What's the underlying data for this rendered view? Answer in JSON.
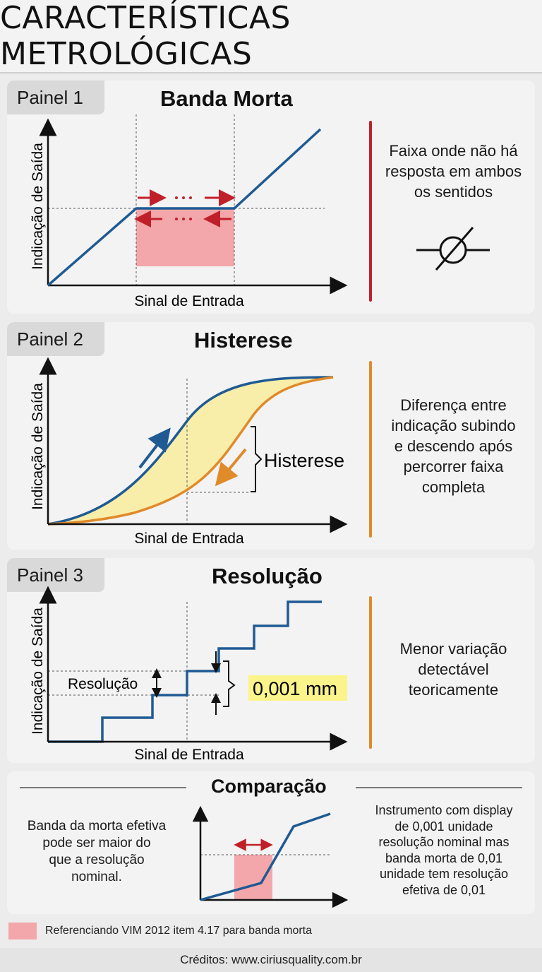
{
  "title": "CARACTERÍSTICAS METROLÓGICAS",
  "axis": {
    "ylabel": "Indicação de Saída",
    "xlabel": "Sinal de Entrada"
  },
  "panels": [
    {
      "tag": "Painel 1",
      "title": "Banda Morta",
      "description": [
        "Faixa onde não há",
        "resposta em ambos",
        "os sentidos"
      ],
      "accent": "#c0202a",
      "icon": "null-symbol-icon"
    },
    {
      "tag": "Painel 2",
      "title": "Histerese",
      "description": [
        "Diferença entre",
        "indicação subindo",
        "e descendo após",
        "percorrer faixa",
        "completa"
      ],
      "accent": "#e08a2a",
      "annotation": "Histerese"
    },
    {
      "tag": "Painel 3",
      "title": "Resolução",
      "description": [
        "Menor variação",
        "detectável",
        "teoricamente"
      ],
      "accent": "#e08a2a",
      "annotation_left": "Resolução",
      "annotation_value": "0,001 mm"
    }
  ],
  "comparison": {
    "title": "Comparação",
    "left_text": [
      "Banda da morta efetiva",
      "pode ser maior do",
      "que a resolução",
      "nominal."
    ],
    "right_text": [
      "Instrumento com display",
      "de 0,001 unidade",
      "resolução nominal mas",
      "banda morta de 0,01",
      "unidade tem resolução",
      "efetiva de 0,01"
    ]
  },
  "footnote": "Referenciando VIM 2012 item 4.17 para banda morta",
  "credits": "Créditos: www.ciriusquality.com.br",
  "colors": {
    "blue": "#1f5a93",
    "red": "#c0202a",
    "orange": "#e08a2a",
    "pink": "#f4a7ab",
    "yellow": "#f8eeaa",
    "highlight": "#fbf48a"
  }
}
